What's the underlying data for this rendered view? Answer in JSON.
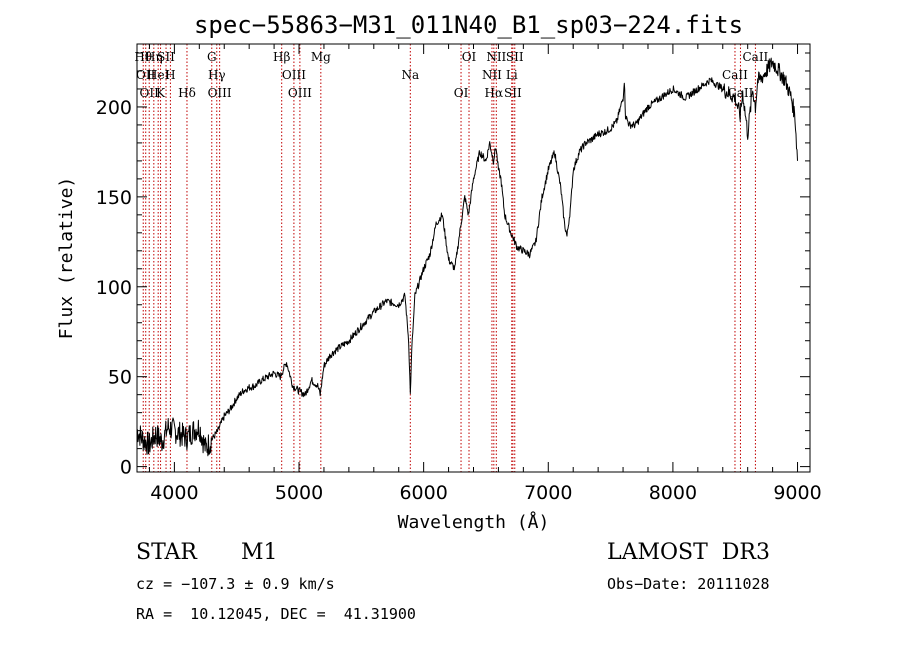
{
  "chart_data": {
    "type": "line",
    "title": "spec−55863−M31_011N40_B1_sp03−224.fits",
    "xlabel": "Wavelength (Å)",
    "ylabel": "Flux (relative)",
    "xlim": [
      3700,
      9100
    ],
    "ylim": [
      -3,
      235
    ],
    "grid": false,
    "x_ticks": [
      4000,
      5000,
      6000,
      7000,
      8000,
      9000
    ],
    "y_ticks": [
      0,
      50,
      100,
      150,
      200
    ],
    "series": [
      {
        "name": "flux",
        "x": [
          3700,
          3750,
          3800,
          3850,
          3900,
          3950,
          4000,
          4050,
          4100,
          4150,
          4200,
          4250,
          4300,
          4350,
          4400,
          4450,
          4500,
          4550,
          4600,
          4650,
          4700,
          4750,
          4800,
          4850,
          4880,
          4900,
          4950,
          5000,
          5050,
          5100,
          5150,
          5170,
          5200,
          5250,
          5300,
          5400,
          5500,
          5600,
          5700,
          5800,
          5850,
          5880,
          5893,
          5905,
          5930,
          6000,
          6050,
          6100,
          6150,
          6200,
          6250,
          6280,
          6300,
          6330,
          6360,
          6400,
          6450,
          6500,
          6530,
          6560,
          6580,
          6600,
          6620,
          6650,
          6700,
          6750,
          6800,
          6850,
          6900,
          6950,
          7000,
          7050,
          7100,
          7130,
          7150,
          7180,
          7200,
          7250,
          7300,
          7350,
          7400,
          7450,
          7500,
          7550,
          7600,
          7610,
          7620,
          7650,
          7700,
          7750,
          7800,
          7900,
          8000,
          8100,
          8200,
          8300,
          8400,
          8500,
          8540,
          8560,
          8600,
          8640,
          8662,
          8680,
          8700,
          8750,
          8800,
          8850,
          8900,
          8950,
          8980,
          9000
        ],
        "values": [
          20,
          15,
          12,
          18,
          14,
          22,
          20,
          18,
          16,
          20,
          22,
          10,
          15,
          20,
          28,
          32,
          38,
          42,
          44,
          45,
          48,
          50,
          52,
          50,
          55,
          58,
          45,
          42,
          40,
          48,
          45,
          40,
          56,
          62,
          65,
          70,
          78,
          86,
          92,
          90,
          95,
          70,
          40,
          65,
          95,
          110,
          118,
          135,
          140,
          115,
          110,
          125,
          135,
          150,
          140,
          160,
          175,
          170,
          180,
          170,
          178,
          165,
          160,
          140,
          130,
          122,
          120,
          118,
          125,
          150,
          165,
          175,
          155,
          135,
          128,
          145,
          165,
          175,
          180,
          182,
          185,
          186,
          188,
          192,
          205,
          215,
          195,
          190,
          190,
          195,
          200,
          205,
          210,
          205,
          210,
          215,
          210,
          205,
          195,
          208,
          185,
          210,
          200,
          215,
          215,
          220,
          225,
          220,
          215,
          205,
          195,
          170
        ]
      }
    ],
    "lines": [
      {
        "x": 3750,
        "label": "Hθ"
      },
      {
        "x": 3770,
        "label": "OII"
      },
      {
        "x": 3798,
        "label": "OII"
      },
      {
        "x": 3835,
        "label": "Hη"
      },
      {
        "x": 3870,
        "label": "HeI"
      },
      {
        "x": 3889,
        "label": "K"
      },
      {
        "x": 3933,
        "label": "SII"
      },
      {
        "x": 3968,
        "label": "H"
      },
      {
        "x": 4101,
        "label": "Hδ"
      },
      {
        "x": 4300,
        "label": "G"
      },
      {
        "x": 4340,
        "label": "Hγ"
      },
      {
        "x": 4363,
        "label": "OIII"
      },
      {
        "x": 4861,
        "label": "Hβ"
      },
      {
        "x": 4959,
        "label": "OIII"
      },
      {
        "x": 5007,
        "label": "OIII"
      },
      {
        "x": 5175,
        "label": "Mg"
      },
      {
        "x": 5893,
        "label": "Na"
      },
      {
        "x": 6300,
        "label": "OI"
      },
      {
        "x": 6364,
        "label": "OI"
      },
      {
        "x": 6548,
        "label": "NII"
      },
      {
        "x": 6563,
        "label": "Hα"
      },
      {
        "x": 6583,
        "label": "NII"
      },
      {
        "x": 6707,
        "label": "Li"
      },
      {
        "x": 6716,
        "label": "SII"
      },
      {
        "x": 6731,
        "label": "SII"
      },
      {
        "x": 8498,
        "label": "CaII"
      },
      {
        "x": 8542,
        "label": "CaII"
      },
      {
        "x": 8662,
        "label": "CaII"
      }
    ]
  },
  "info": {
    "object_class": "STAR",
    "subclass": "M1",
    "survey": "LAMOST  DR3",
    "cz": "cz = −107.3 ± 0.9 km/s",
    "obs_date": "Obs−Date: 20111028",
    "radec": "RA =  10.12045, DEC =  41.31900"
  }
}
